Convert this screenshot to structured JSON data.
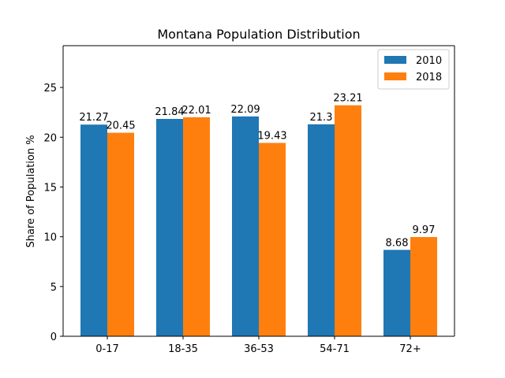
{
  "chart_data": {
    "type": "bar",
    "title": "Montana Population Distribution",
    "xlabel": "",
    "ylabel": "Share of Population %",
    "categories": [
      "0-17",
      "18-35",
      "36-53",
      "54-71",
      "72+"
    ],
    "series": [
      {
        "name": "2010",
        "color": "#1f77b4",
        "values": [
          21.27,
          21.84,
          22.09,
          21.3,
          8.68
        ],
        "labels": [
          "21.27",
          "21.84",
          "22.09",
          "21.3",
          "8.68"
        ]
      },
      {
        "name": "2018",
        "color": "#ff7f0e",
        "values": [
          20.45,
          22.01,
          19.43,
          23.21,
          9.97
        ],
        "labels": [
          "20.45",
          "22.01",
          "19.43",
          "23.21",
          "9.97"
        ]
      }
    ],
    "ylim": [
      0,
      29.2
    ],
    "yticks": [
      0,
      5,
      10,
      15,
      20,
      25
    ],
    "legend_position": "top-right",
    "grid": false
  }
}
